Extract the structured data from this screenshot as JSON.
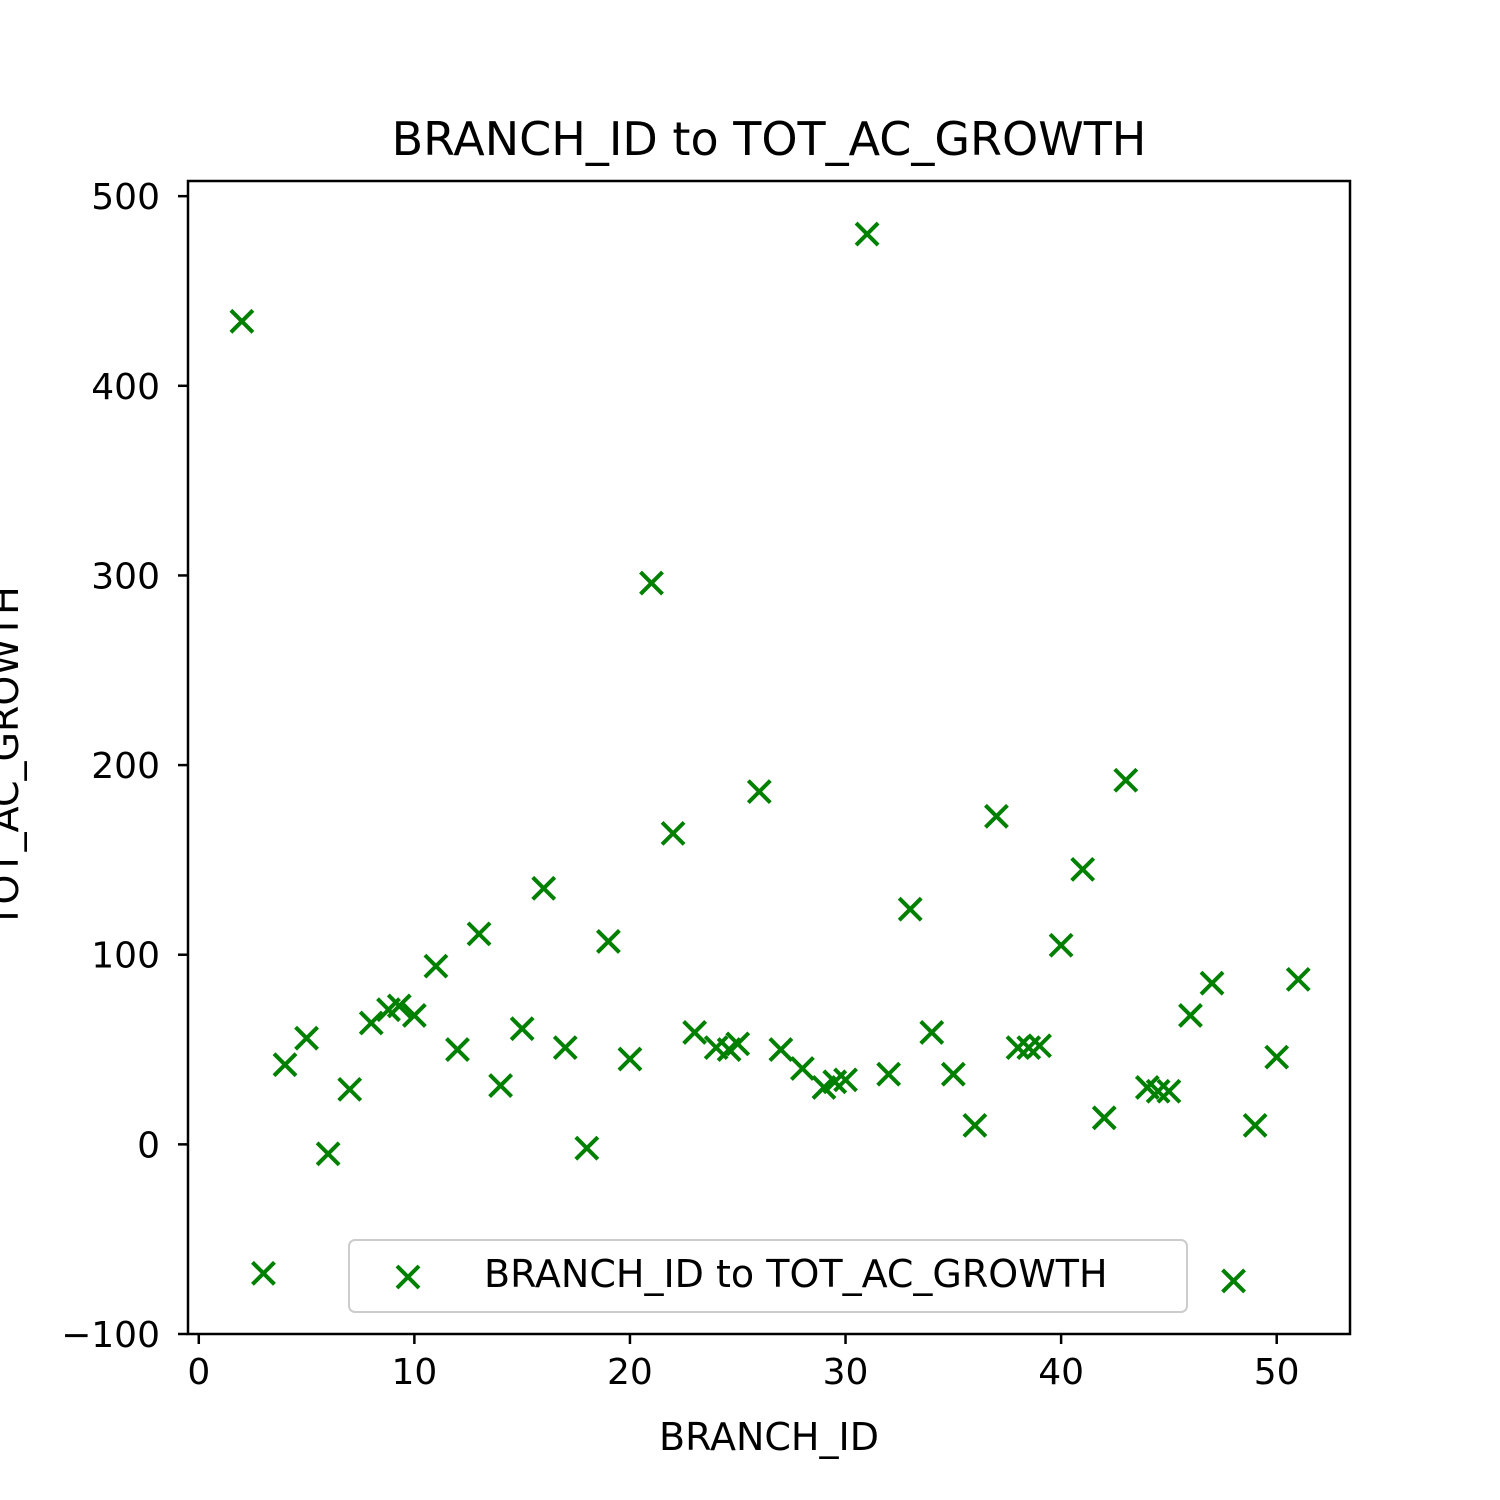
{
  "chart_data": {
    "type": "scatter",
    "title": "BRANCH_ID to TOT_AC_GROWTH",
    "xlabel": "BRANCH_ID",
    "ylabel": "TOT_AC_GROWTH",
    "xlim": [
      -0.5,
      53.4
    ],
    "ylim": [
      -100,
      508
    ],
    "x_ticks": [
      0,
      10,
      20,
      30,
      40,
      50
    ],
    "y_ticks": [
      -100,
      0,
      100,
      200,
      300,
      400,
      500
    ],
    "x_tick_labels": [
      "0",
      "10",
      "20",
      "30",
      "40",
      "50"
    ],
    "y_tick_labels": [
      "−100",
      "0",
      "100",
      "200",
      "300",
      "400",
      "500"
    ],
    "grid": false,
    "legend_position": "lower center",
    "series": [
      {
        "name": "BRANCH_ID to TOT_AC_GROWTH",
        "marker": "x",
        "color": "#008000",
        "x": [
          2,
          3,
          4,
          5,
          6,
          7,
          8,
          8.8,
          9.3,
          10,
          11,
          12,
          13,
          14,
          15,
          16,
          17,
          18,
          19,
          20,
          21,
          22,
          23,
          24,
          24.6,
          25,
          26,
          27,
          28,
          29,
          29.5,
          30,
          31,
          32,
          33,
          34,
          35,
          36,
          37,
          38,
          38.5,
          39,
          40,
          41,
          42,
          43,
          44,
          44.5,
          45,
          46,
          47,
          48,
          49,
          50,
          51
        ],
        "y": [
          434,
          -68,
          42,
          56,
          -5,
          29,
          64,
          71,
          73,
          68,
          94,
          50,
          111,
          31,
          61,
          135,
          51,
          -2,
          107,
          45,
          296,
          164,
          59,
          51,
          50,
          53,
          186,
          50,
          40,
          30,
          33,
          34,
          480,
          37,
          124,
          59,
          37,
          10,
          173,
          51,
          51,
          52,
          105,
          145,
          14,
          192,
          30,
          28,
          28,
          68,
          85,
          -72,
          10,
          46,
          87
        ]
      }
    ]
  }
}
